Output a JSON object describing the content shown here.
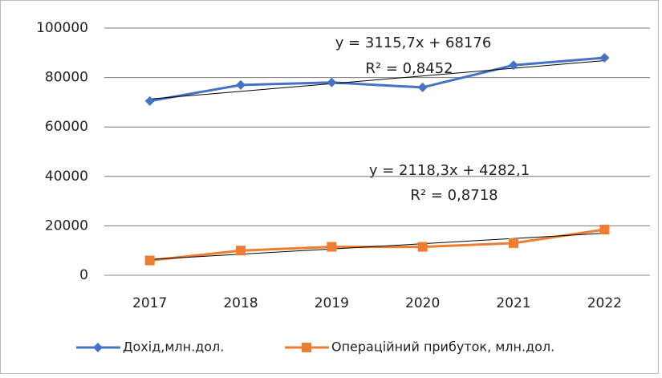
{
  "chart_data": {
    "type": "line",
    "categories": [
      "2017",
      "2018",
      "2019",
      "2020",
      "2021",
      "2022"
    ],
    "series": [
      {
        "name": "Дохід,млн.дол.",
        "color": "#4472c4",
        "marker": "diamond",
        "values": [
          70500,
          77000,
          78000,
          76000,
          85000,
          88000
        ]
      },
      {
        "name": "Операційний  прибуток, млн.дол.",
        "color": "#ed7d31",
        "marker": "square",
        "values": [
          6000,
          10000,
          11500,
          11500,
          13000,
          18500
        ]
      }
    ],
    "trendlines": [
      {
        "equation": "y = 3115,7x + 68176",
        "r2": "R² = 0,8452",
        "slope": 3115.7,
        "intercept": 68176
      },
      {
        "equation": "y = 2118,3x + 4282,1",
        "r2": "R² = 0,8718",
        "slope": 2118.3,
        "intercept": 4282.1
      }
    ],
    "ylim": [
      0,
      100000
    ],
    "yticks": [
      0,
      20000,
      40000,
      60000,
      80000,
      100000
    ],
    "grid": true,
    "legend": "bottom"
  }
}
